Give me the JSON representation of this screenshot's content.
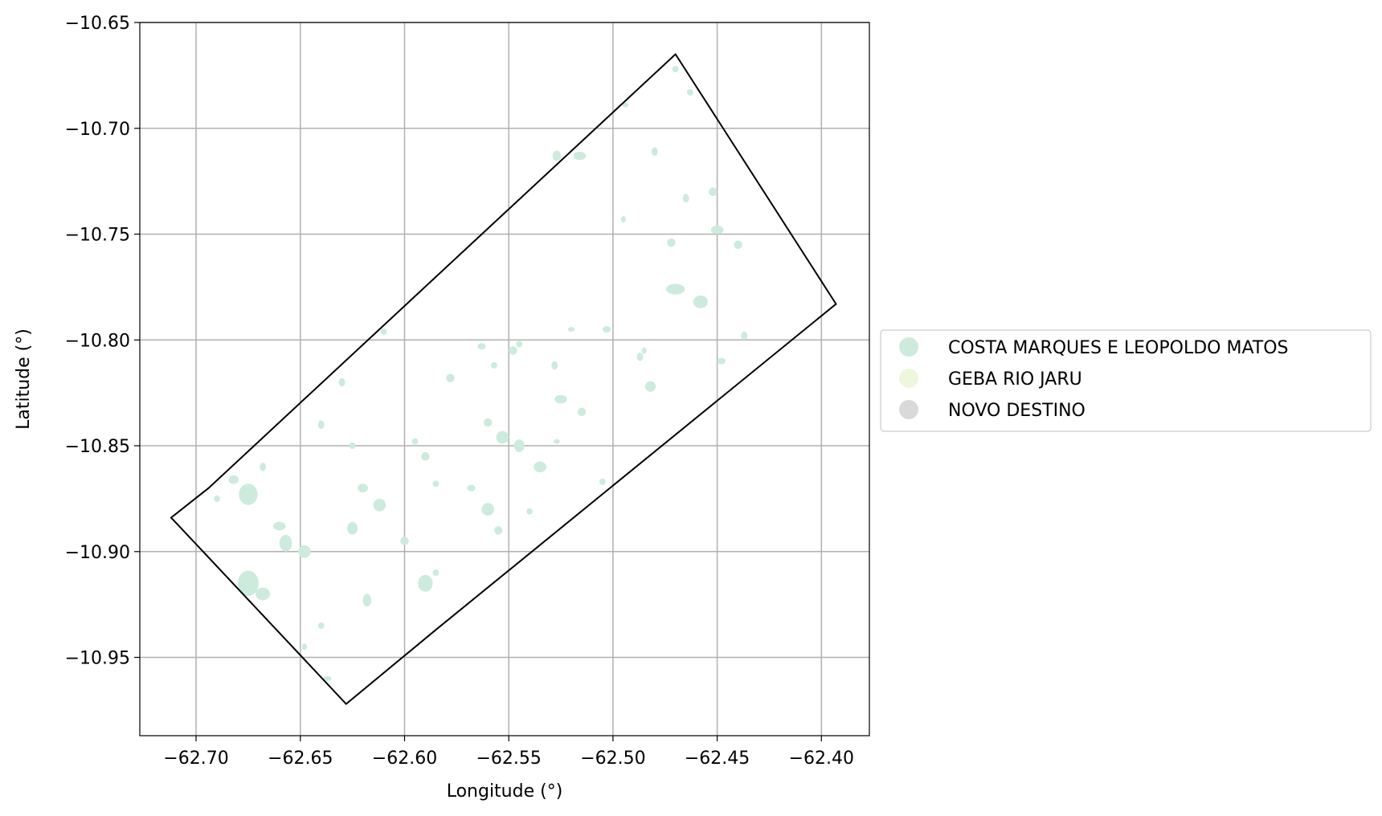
{
  "chart_data": {
    "type": "map",
    "xlabel": "Longitude (°)",
    "ylabel": "Latitude (°)",
    "xlim": [
      -62.727,
      -62.377
    ],
    "ylim": [
      -10.987,
      -10.65
    ],
    "grid": true,
    "xticks": [
      -62.7,
      -62.65,
      -62.6,
      -62.55,
      -62.5,
      -62.45,
      -62.4
    ],
    "xtick_labels": [
      "−62.70",
      "−62.65",
      "−62.60",
      "−62.55",
      "−62.50",
      "−62.45",
      "−62.40"
    ],
    "yticks": [
      -10.65,
      -10.7,
      -10.75,
      -10.8,
      -10.85,
      -10.9,
      -10.95
    ],
    "ytick_labels": [
      "−10.65",
      "−10.70",
      "−10.75",
      "−10.80",
      "−10.85",
      "−10.90",
      "−10.95"
    ],
    "legend_position": "right, outside plot",
    "legend": [
      {
        "label": "COSTA MARQUES E LEOPOLDO MATOS",
        "color": "#cdebdc"
      },
      {
        "label": "GEBA RIO JARU",
        "color": "#eef7dc"
      },
      {
        "label": "NOVO DESTINO",
        "color": "#d9d9d9"
      }
    ],
    "boundary_polygon": [
      [
        -62.47,
        -10.665
      ],
      [
        -62.393,
        -10.783
      ],
      [
        -62.585,
        -10.937
      ],
      [
        -62.628,
        -10.972
      ],
      [
        -62.71,
        -10.886
      ],
      [
        -62.712,
        -10.884
      ],
      [
        -62.694,
        -10.87
      ],
      [
        -62.47,
        -10.665
      ]
    ],
    "patches": [
      [
        -62.675,
        -10.915,
        0.01,
        0.012
      ],
      [
        -62.668,
        -10.92,
        0.007,
        0.006
      ],
      [
        -62.675,
        -10.873,
        0.009,
        0.01
      ],
      [
        -62.682,
        -10.866,
        0.005,
        0.004
      ],
      [
        -62.66,
        -10.888,
        0.006,
        0.004
      ],
      [
        -62.657,
        -10.896,
        0.006,
        0.008
      ],
      [
        -62.648,
        -10.9,
        0.006,
        0.006
      ],
      [
        -62.62,
        -10.87,
        0.005,
        0.004
      ],
      [
        -62.612,
        -10.878,
        0.006,
        0.006
      ],
      [
        -62.625,
        -10.889,
        0.005,
        0.006
      ],
      [
        -62.618,
        -10.923,
        0.004,
        0.006
      ],
      [
        -62.59,
        -10.915,
        0.007,
        0.008
      ],
      [
        -62.585,
        -10.91,
        0.003,
        0.003
      ],
      [
        -62.6,
        -10.895,
        0.004,
        0.004
      ],
      [
        -62.64,
        -10.935,
        0.003,
        0.003
      ],
      [
        -62.648,
        -10.945,
        0.002,
        0.003
      ],
      [
        -62.637,
        -10.96,
        0.004,
        0.002
      ],
      [
        -62.56,
        -10.88,
        0.006,
        0.006
      ],
      [
        -62.555,
        -10.89,
        0.004,
        0.004
      ],
      [
        -62.568,
        -10.87,
        0.004,
        0.003
      ],
      [
        -62.553,
        -10.846,
        0.006,
        0.006
      ],
      [
        -62.545,
        -10.85,
        0.005,
        0.006
      ],
      [
        -62.535,
        -10.86,
        0.006,
        0.005
      ],
      [
        -62.527,
        -10.848,
        0.003,
        0.002
      ],
      [
        -62.56,
        -10.839,
        0.004,
        0.004
      ],
      [
        -62.525,
        -10.828,
        0.006,
        0.004
      ],
      [
        -62.515,
        -10.834,
        0.004,
        0.004
      ],
      [
        -62.578,
        -10.818,
        0.004,
        0.004
      ],
      [
        -62.548,
        -10.805,
        0.004,
        0.004
      ],
      [
        -62.545,
        -10.802,
        0.003,
        0.003
      ],
      [
        -62.528,
        -10.812,
        0.003,
        0.004
      ],
      [
        -62.503,
        -10.795,
        0.004,
        0.003
      ],
      [
        -62.487,
        -10.808,
        0.003,
        0.004
      ],
      [
        -62.482,
        -10.822,
        0.005,
        0.005
      ],
      [
        -62.47,
        -10.776,
        0.009,
        0.005
      ],
      [
        -62.458,
        -10.782,
        0.007,
        0.006
      ],
      [
        -62.45,
        -10.748,
        0.006,
        0.004
      ],
      [
        -62.44,
        -10.755,
        0.004,
        0.004
      ],
      [
        -62.472,
        -10.754,
        0.004,
        0.004
      ],
      [
        -62.465,
        -10.733,
        0.003,
        0.004
      ],
      [
        -62.452,
        -10.73,
        0.004,
        0.004
      ],
      [
        -62.48,
        -10.711,
        0.003,
        0.004
      ],
      [
        -62.516,
        -10.713,
        0.006,
        0.004
      ],
      [
        -62.527,
        -10.713,
        0.004,
        0.005
      ],
      [
        -62.47,
        -10.672,
        0.003,
        0.003
      ],
      [
        -62.463,
        -10.683,
        0.003,
        0.003
      ],
      [
        -62.494,
        -10.689,
        0.003,
        0.002
      ],
      [
        -62.495,
        -10.743,
        0.002,
        0.003
      ],
      [
        -62.485,
        -10.805,
        0.002,
        0.003
      ],
      [
        -62.61,
        -10.796,
        0.003,
        0.003
      ],
      [
        -62.63,
        -10.82,
        0.003,
        0.004
      ],
      [
        -62.64,
        -10.84,
        0.003,
        0.004
      ],
      [
        -62.595,
        -10.848,
        0.003,
        0.003
      ],
      [
        -62.59,
        -10.855,
        0.004,
        0.004
      ],
      [
        -62.585,
        -10.868,
        0.003,
        0.003
      ],
      [
        -62.563,
        -10.803,
        0.004,
        0.003
      ],
      [
        -62.557,
        -10.812,
        0.003,
        0.003
      ],
      [
        -62.52,
        -10.795,
        0.003,
        0.002
      ],
      [
        -62.448,
        -10.81,
        0.004,
        0.003
      ],
      [
        -62.437,
        -10.798,
        0.003,
        0.004
      ],
      [
        -62.505,
        -10.867,
        0.003,
        0.003
      ],
      [
        -62.54,
        -10.881,
        0.003,
        0.003
      ],
      [
        -62.668,
        -10.86,
        0.003,
        0.004
      ],
      [
        -62.69,
        -10.875,
        0.003,
        0.003
      ],
      [
        -62.625,
        -10.85,
        0.003,
        0.003
      ]
    ]
  }
}
